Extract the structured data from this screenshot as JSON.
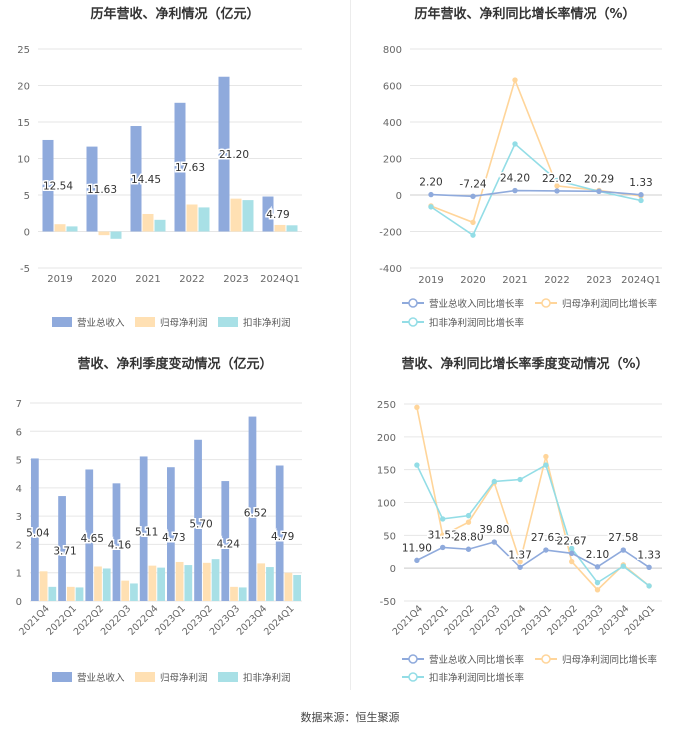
{
  "source_label": "数据来源：恒生聚源",
  "colors": {
    "revenue": "#8faadc",
    "net": "#ffe0b3",
    "deduct": "#a8e0e6",
    "rev_line": "#8faadc",
    "net_line": "#ffd59a",
    "ded_line": "#93dde6"
  },
  "chart_data": [
    {
      "type": "bar",
      "title": "历年营收、净利情况（亿元）",
      "categories": [
        "2019",
        "2020",
        "2021",
        "2022",
        "2023",
        "2024Q1"
      ],
      "ylim": [
        -5,
        25
      ],
      "yticks": [
        -5,
        0,
        5,
        10,
        15,
        20,
        25
      ],
      "series": [
        {
          "name": "营业总收入",
          "values": [
            12.54,
            11.63,
            14.45,
            17.63,
            21.2,
            4.79
          ]
        },
        {
          "name": "归母净利润",
          "values": [
            1.0,
            -0.5,
            2.4,
            3.7,
            4.5,
            0.9
          ]
        },
        {
          "name": "扣非净利润",
          "values": [
            0.7,
            -1.0,
            1.6,
            3.3,
            4.3,
            0.85
          ]
        }
      ],
      "data_labels": [
        "12.54",
        "11.63",
        "14.45",
        "17.63",
        "21.20",
        "4.79"
      ],
      "legend": "bottom"
    },
    {
      "type": "line",
      "title": "历年营收、净利同比增长率情况（%）",
      "categories": [
        "2019",
        "2020",
        "2021",
        "2022",
        "2023",
        "2024Q1"
      ],
      "ylim": [
        -400,
        800
      ],
      "yticks": [
        -400,
        -200,
        0,
        200,
        400,
        600,
        800
      ],
      "series": [
        {
          "name": "营业总收入同比增长率",
          "values": [
            2.2,
            -7.24,
            24.2,
            22.02,
            20.29,
            1.33
          ]
        },
        {
          "name": "归母净利润同比增长率",
          "values": [
            -60,
            -150,
            630,
            50,
            25,
            -5
          ]
        },
        {
          "name": "扣非净利润同比增长率",
          "values": [
            -65,
            -220,
            280,
            80,
            20,
            -30
          ]
        }
      ],
      "data_labels": [
        "2.20",
        "-7.24",
        "24.20",
        "22.02",
        "20.29",
        "1.33"
      ],
      "legend": "bottom"
    },
    {
      "type": "bar",
      "title": "营收、净利季度变动情况（亿元）",
      "categories": [
        "2021Q4",
        "2022Q1",
        "2022Q2",
        "2022Q3",
        "2022Q4",
        "2023Q1",
        "2023Q2",
        "2023Q3",
        "2023Q4",
        "2024Q1"
      ],
      "ylim": [
        0,
        7
      ],
      "yticks": [
        0,
        1,
        2,
        3,
        4,
        5,
        6,
        7
      ],
      "series": [
        {
          "name": "营业总收入",
          "values": [
            5.04,
            3.71,
            4.65,
            4.16,
            5.11,
            4.73,
            5.7,
            4.24,
            6.52,
            4.79
          ]
        },
        {
          "name": "归母净利润",
          "values": [
            1.05,
            0.5,
            1.22,
            0.72,
            1.25,
            1.38,
            1.35,
            0.5,
            1.33,
            1.0
          ]
        },
        {
          "name": "扣非净利润",
          "values": [
            0.5,
            0.48,
            1.15,
            0.62,
            1.18,
            1.27,
            1.48,
            0.48,
            1.2,
            0.92
          ]
        }
      ],
      "data_labels": [
        "5.04",
        "3.71",
        "4.65",
        "4.16",
        "5.11",
        "4.73",
        "5.70",
        "4.24",
        "6.52",
        "4.79"
      ],
      "legend": "bottom"
    },
    {
      "type": "line",
      "title": "营收、净利同比增长率季度变动情况（%）",
      "categories": [
        "2021Q4",
        "2022Q1",
        "2022Q2",
        "2022Q3",
        "2022Q4",
        "2023Q1",
        "2023Q2",
        "2023Q3",
        "2023Q4",
        "2024Q1"
      ],
      "ylim": [
        -50,
        250
      ],
      "yticks": [
        -50,
        0,
        50,
        100,
        150,
        200,
        250
      ],
      "series": [
        {
          "name": "营业总收入同比增长率",
          "values": [
            11.9,
            31.53,
            28.8,
            39.8,
            1.37,
            27.63,
            22.67,
            2.1,
            27.58,
            1.33
          ]
        },
        {
          "name": "归母净利润同比增长率",
          "values": [
            245,
            50,
            70,
            130,
            10,
            170,
            10,
            -33,
            5,
            -27
          ]
        },
        {
          "name": "扣非净利润同比增长率",
          "values": [
            157,
            75,
            80,
            132,
            135,
            157,
            30,
            -22,
            3,
            -27
          ]
        }
      ],
      "data_labels": [
        "11.90",
        "31.53",
        "28.80",
        "39.80",
        "1.37",
        "27.63",
        "22.67",
        "2.10",
        "27.58",
        "1.33"
      ],
      "legend": "bottom"
    }
  ]
}
